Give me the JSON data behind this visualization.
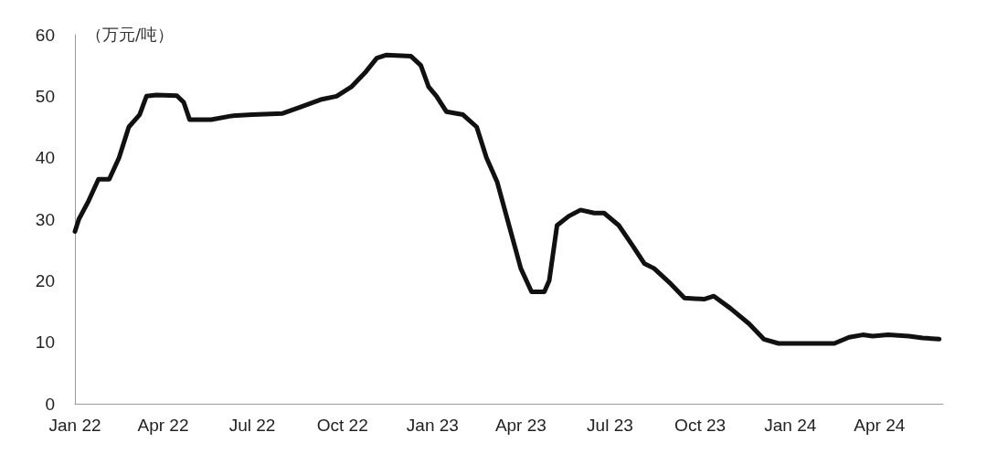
{
  "chart_data": {
    "type": "line",
    "ylabel": "（万元/吨）",
    "x": [
      "2022-01-01",
      "2022-01-05",
      "2022-01-15",
      "2022-01-25",
      "2022-02-05",
      "2022-02-15",
      "2022-02-25",
      "2022-03-08",
      "2022-03-15",
      "2022-03-25",
      "2022-04-15",
      "2022-04-22",
      "2022-04-28",
      "2022-05-20",
      "2022-06-10",
      "2022-07-01",
      "2022-08-01",
      "2022-08-20",
      "2022-09-10",
      "2022-09-25",
      "2022-10-10",
      "2022-10-25",
      "2022-11-05",
      "2022-11-15",
      "2022-12-10",
      "2022-12-20",
      "2022-12-28",
      "2023-01-05",
      "2023-01-15",
      "2023-02-01",
      "2023-02-15",
      "2023-02-25",
      "2023-03-08",
      "2023-03-20",
      "2023-04-01",
      "2023-04-12",
      "2023-04-25",
      "2023-04-30",
      "2023-05-08",
      "2023-05-20",
      "2023-06-01",
      "2023-06-15",
      "2023-06-25",
      "2023-07-10",
      "2023-07-25",
      "2023-08-05",
      "2023-08-15",
      "2023-09-01",
      "2023-09-15",
      "2023-10-05",
      "2023-10-15",
      "2023-11-01",
      "2023-11-20",
      "2023-12-05",
      "2023-12-20",
      "2024-01-15",
      "2024-02-15",
      "2024-03-01",
      "2024-03-15",
      "2024-03-25",
      "2024-04-10",
      "2024-05-01",
      "2024-05-15",
      "2024-06-01"
    ],
    "series": [
      {
        "color": "#111111",
        "values": [
          28,
          30,
          33,
          36.5,
          36.5,
          40,
          45,
          47,
          50,
          50.2,
          50.1,
          49,
          46.2,
          46.2,
          46.8,
          47,
          47.2,
          48.3,
          49.5,
          50,
          51.5,
          54,
          56.2,
          56.7,
          56.5,
          55,
          51.5,
          50,
          47.5,
          47,
          45,
          40,
          36,
          29,
          22,
          18.2,
          18.2,
          20,
          29,
          30.5,
          31.5,
          31,
          31,
          29,
          25.5,
          22.8,
          22,
          19.5,
          17.2,
          17,
          17.5,
          15.5,
          13,
          10.5,
          9.8,
          9.8,
          9.8,
          10.8,
          11.2,
          11,
          11.2,
          11,
          10.7,
          10.5
        ]
      }
    ],
    "xlim": [
      "2022-01-01",
      "2024-06-05"
    ],
    "xticks": [
      {
        "value": "2022-01-01",
        "label": "Jan 22"
      },
      {
        "value": "2022-04-01",
        "label": "Apr 22"
      },
      {
        "value": "2022-07-01",
        "label": "Jul 22"
      },
      {
        "value": "2022-10-01",
        "label": "Oct 22"
      },
      {
        "value": "2023-01-01",
        "label": "Jan 23"
      },
      {
        "value": "2023-04-01",
        "label": "Apr 23"
      },
      {
        "value": "2023-07-01",
        "label": "Jul 23"
      },
      {
        "value": "2023-10-01",
        "label": "Oct 23"
      },
      {
        "value": "2024-01-01",
        "label": "Jan 24"
      },
      {
        "value": "2024-04-01",
        "label": "Apr 24"
      }
    ],
    "ylim": [
      0,
      60
    ],
    "yticks": [
      0,
      10,
      20,
      30,
      40,
      50,
      60
    ],
    "grid": false,
    "marker": "none",
    "line_style": "solid"
  }
}
